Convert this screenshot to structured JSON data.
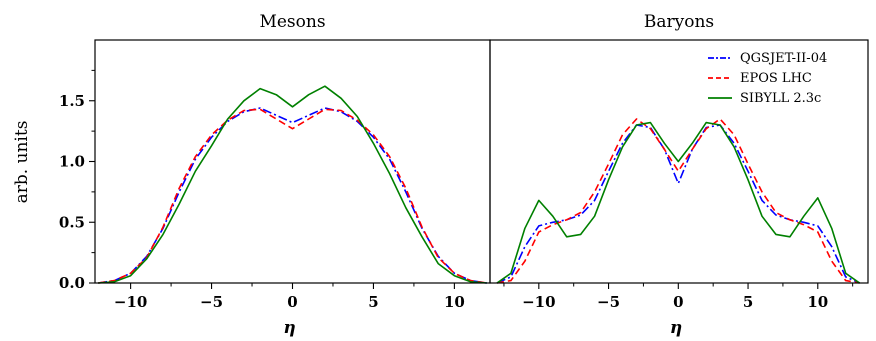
{
  "chart_data": [
    {
      "type": "line",
      "title": "Mesons",
      "xlabel": "η",
      "ylabel": "arb. units",
      "xlim": [
        -12.2,
        12.2
      ],
      "ylim": [
        0,
        2.0
      ],
      "xticks": [
        -10,
        -5,
        0,
        5,
        10
      ],
      "xtick_labels": [
        "−10",
        "−5",
        "0",
        "5",
        "10"
      ],
      "yticks": [
        0.0,
        0.5,
        1.0,
        1.5
      ],
      "ytick_labels": [
        "0.0",
        "0.5",
        "1.0",
        "1.5"
      ],
      "legend": false,
      "grid": false,
      "x": [
        -12,
        -11,
        -10,
        -9,
        -8,
        -7,
        -6,
        -5,
        -4,
        -3,
        -2,
        -1,
        0,
        1,
        2,
        3,
        4,
        5,
        6,
        7,
        8,
        9,
        10,
        11,
        12
      ],
      "series": [
        {
          "name": "QGSJET-II-04",
          "color": "#0000ff",
          "style": "dashdot",
          "values": [
            0.0,
            0.02,
            0.08,
            0.22,
            0.45,
            0.75,
            1.02,
            1.2,
            1.33,
            1.41,
            1.44,
            1.38,
            1.32,
            1.38,
            1.44,
            1.41,
            1.33,
            1.2,
            1.02,
            0.75,
            0.45,
            0.22,
            0.08,
            0.02,
            0.0
          ]
        },
        {
          "name": "EPOS LHC",
          "color": "#ff0000",
          "style": "dashed",
          "values": [
            0.0,
            0.02,
            0.08,
            0.21,
            0.46,
            0.78,
            1.04,
            1.22,
            1.34,
            1.42,
            1.43,
            1.35,
            1.27,
            1.35,
            1.43,
            1.42,
            1.34,
            1.22,
            1.04,
            0.78,
            0.46,
            0.21,
            0.08,
            0.02,
            0.0
          ]
        },
        {
          "name": "SIBYLL 2.3c",
          "color": "#008000",
          "style": "solid",
          "values": [
            0.0,
            0.01,
            0.06,
            0.2,
            0.4,
            0.65,
            0.92,
            1.13,
            1.35,
            1.5,
            1.6,
            1.55,
            1.45,
            1.55,
            1.62,
            1.52,
            1.37,
            1.15,
            0.9,
            0.62,
            0.38,
            0.16,
            0.06,
            0.01,
            0.0
          ]
        }
      ]
    },
    {
      "type": "line",
      "title": "Baryons",
      "xlabel": "η",
      "ylabel": "",
      "xlim": [
        -13.5,
        13.6
      ],
      "ylim": [
        0,
        2.0
      ],
      "xticks": [
        -10,
        -5,
        0,
        5,
        10
      ],
      "xtick_labels": [
        "−10",
        "−5",
        "0",
        "5",
        "10"
      ],
      "legend": true,
      "legend_position": "top-right",
      "grid": false,
      "x": [
        -13,
        -12,
        -11,
        -10,
        -9,
        -8,
        -7,
        -6,
        -5,
        -4,
        -3,
        -2,
        -1,
        0,
        1,
        2,
        3,
        4,
        5,
        6,
        7,
        8,
        9,
        10,
        11,
        12,
        13
      ],
      "series": [
        {
          "name": "QGSJET-II-04",
          "color": "#0000ff",
          "style": "dashdot",
          "values": [
            0.0,
            0.05,
            0.3,
            0.47,
            0.5,
            0.52,
            0.56,
            0.68,
            0.92,
            1.15,
            1.3,
            1.28,
            1.1,
            0.82,
            1.1,
            1.28,
            1.3,
            1.15,
            0.92,
            0.68,
            0.56,
            0.52,
            0.5,
            0.47,
            0.3,
            0.05,
            0.0
          ]
        },
        {
          "name": "EPOS LHC",
          "color": "#ff0000",
          "style": "dashed",
          "values": [
            0.0,
            0.02,
            0.18,
            0.42,
            0.48,
            0.52,
            0.58,
            0.75,
            0.98,
            1.22,
            1.35,
            1.27,
            1.1,
            0.92,
            1.1,
            1.27,
            1.35,
            1.22,
            0.98,
            0.75,
            0.58,
            0.52,
            0.48,
            0.42,
            0.18,
            0.02,
            0.0
          ]
        },
        {
          "name": "SIBYLL 2.3c",
          "color": "#008000",
          "style": "solid",
          "values": [
            0.0,
            0.08,
            0.45,
            0.68,
            0.55,
            0.38,
            0.4,
            0.55,
            0.85,
            1.12,
            1.3,
            1.32,
            1.15,
            1.0,
            1.15,
            1.32,
            1.3,
            1.12,
            0.85,
            0.55,
            0.4,
            0.38,
            0.55,
            0.7,
            0.45,
            0.08,
            0.0
          ]
        }
      ]
    }
  ],
  "legend": {
    "entries": [
      {
        "label": "QGSJET-II-04",
        "color": "#0000ff",
        "style": "dashdot"
      },
      {
        "label": "EPOS LHC",
        "color": "#ff0000",
        "style": "dashed"
      },
      {
        "label": "SIBYLL 2.3c",
        "color": "#008000",
        "style": "solid"
      }
    ]
  }
}
